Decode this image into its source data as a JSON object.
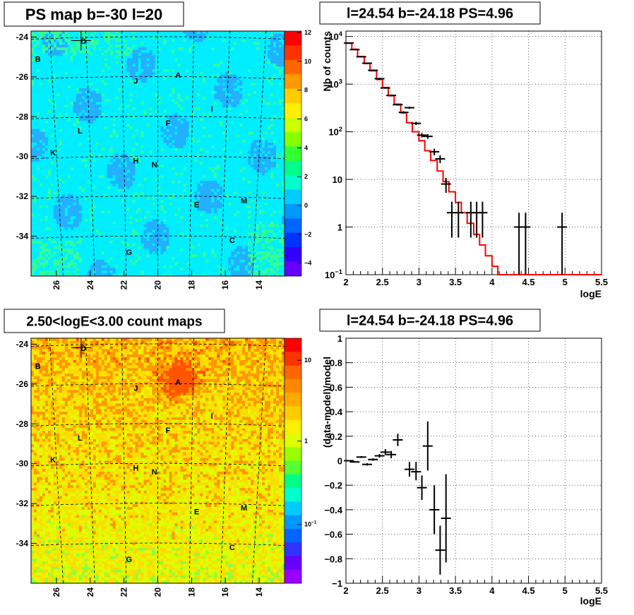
{
  "chart_data": [
    {
      "type": "heatmap",
      "title": "PS map b=-30 l=20",
      "x_ticks": [
        "26",
        "24",
        "22",
        "20",
        "18",
        "16",
        "14"
      ],
      "y_ticks": [
        "-24",
        "-26",
        "-28",
        "-30",
        "-32",
        "-34"
      ],
      "xlim": [
        27.5,
        12.5
      ],
      "ylim": [
        -36,
        -23.7
      ],
      "colorbar": {
        "ticks": [
          "12",
          "10",
          "8",
          "6",
          "4",
          "2",
          "0",
          "−2",
          "−4"
        ],
        "range": [
          -5,
          12
        ]
      },
      "sources": [
        {
          "name": "D",
          "l": 24.4,
          "b": -24.2
        },
        {
          "name": "B",
          "l": 27.1,
          "b": -25.1
        },
        {
          "name": "A",
          "l": 18.8,
          "b": -25.9
        },
        {
          "name": "J",
          "l": 21.3,
          "b": -26.2
        },
        {
          "name": "I",
          "l": 16.8,
          "b": -27.6
        },
        {
          "name": "F",
          "l": 19.4,
          "b": -28.3
        },
        {
          "name": "L",
          "l": 24.6,
          "b": -28.7
        },
        {
          "name": "K",
          "l": 26.2,
          "b": -29.8
        },
        {
          "name": "H",
          "l": 21.3,
          "b": -30.2
        },
        {
          "name": "N",
          "l": 20.2,
          "b": -30.4
        },
        {
          "name": "M",
          "l": 14.9,
          "b": -32.2
        },
        {
          "name": "E",
          "l": 17.7,
          "b": -32.4
        },
        {
          "name": "C",
          "l": 15.6,
          "b": -34.2
        },
        {
          "name": "G",
          "l": 21.7,
          "b": -34.8
        }
      ],
      "marker": {
        "l": 24.54,
        "b": -24.18
      }
    },
    {
      "type": "line",
      "title": "l=24.54 b=-24.18 PS=4.96",
      "xlabel": "logE",
      "ylabel": "Nb of counts",
      "xlim": [
        2,
        5.5
      ],
      "ylim": [
        0.1,
        13000
      ],
      "y_log": true,
      "x_ticks": [
        "2",
        "2.5",
        "3",
        "3.5",
        "4",
        "4.5",
        "5",
        "5.5"
      ],
      "y_ticks": [
        {
          "v": 10000,
          "base": "10",
          "exp": "4"
        },
        {
          "v": 1000,
          "base": "10",
          "exp": "3"
        },
        {
          "v": 100,
          "base": "10",
          "exp": "2"
        },
        {
          "v": 10,
          "base": "10",
          "exp": ""
        },
        {
          "v": 1,
          "base": "1",
          "exp": ""
        },
        {
          "v": 0.1,
          "base": "10",
          "exp": "−1"
        }
      ],
      "model": [
        {
          "x0": 2.0,
          "x1": 2.08,
          "y": 7200
        },
        {
          "x0": 2.08,
          "x1": 2.16,
          "y": 5400
        },
        {
          "x0": 2.16,
          "x1": 2.25,
          "y": 3800
        },
        {
          "x0": 2.25,
          "x1": 2.33,
          "y": 2700
        },
        {
          "x0": 2.33,
          "x1": 2.42,
          "y": 1900
        },
        {
          "x0": 2.42,
          "x1": 2.5,
          "y": 1250
        },
        {
          "x0": 2.5,
          "x1": 2.58,
          "y": 850
        },
        {
          "x0": 2.58,
          "x1": 2.66,
          "y": 570
        },
        {
          "x0": 2.66,
          "x1": 2.75,
          "y": 380
        },
        {
          "x0": 2.75,
          "x1": 2.83,
          "y": 250
        },
        {
          "x0": 2.83,
          "x1": 2.91,
          "y": 155
        },
        {
          "x0": 2.91,
          "x1": 3.0,
          "y": 100
        },
        {
          "x0": 3.0,
          "x1": 3.08,
          "y": 65
        },
        {
          "x0": 3.08,
          "x1": 3.16,
          "y": 40
        },
        {
          "x0": 3.16,
          "x1": 3.25,
          "y": 25
        },
        {
          "x0": 3.25,
          "x1": 3.33,
          "y": 15
        },
        {
          "x0": 3.33,
          "x1": 3.41,
          "y": 9
        },
        {
          "x0": 3.41,
          "x1": 3.5,
          "y": 5.5
        },
        {
          "x0": 3.5,
          "x1": 3.58,
          "y": 3.3
        },
        {
          "x0": 3.58,
          "x1": 3.66,
          "y": 2.0
        },
        {
          "x0": 3.66,
          "x1": 3.75,
          "y": 1.2
        },
        {
          "x0": 3.75,
          "x1": 3.83,
          "y": 0.7
        },
        {
          "x0": 3.83,
          "x1": 3.91,
          "y": 0.42
        },
        {
          "x0": 3.91,
          "x1": 4.0,
          "y": 0.25
        },
        {
          "x0": 4.0,
          "x1": 4.08,
          "y": 0.15
        },
        {
          "x0": 4.08,
          "x1": 5.5,
          "y": 0.1
        }
      ],
      "points": [
        {
          "x": 2.04,
          "y": 7300,
          "lo": 7100,
          "hi": 7500
        },
        {
          "x": 2.12,
          "y": 5300,
          "lo": 5150,
          "hi": 5450
        },
        {
          "x": 2.21,
          "y": 3750,
          "lo": 3630,
          "hi": 3870
        },
        {
          "x": 2.29,
          "y": 2750,
          "lo": 2650,
          "hi": 2850
        },
        {
          "x": 2.37,
          "y": 1950,
          "lo": 1870,
          "hi": 2030
        },
        {
          "x": 2.46,
          "y": 1300,
          "lo": 1240,
          "hi": 1360
        },
        {
          "x": 2.54,
          "y": 830,
          "lo": 800,
          "hi": 860
        },
        {
          "x": 2.62,
          "y": 580,
          "lo": 555,
          "hi": 605
        },
        {
          "x": 2.71,
          "y": 370,
          "lo": 352,
          "hi": 388
        },
        {
          "x": 2.79,
          "y": 255,
          "lo": 240,
          "hi": 270
        },
        {
          "x": 2.87,
          "y": 320,
          "lo": 302,
          "hi": 338
        },
        {
          "x": 2.96,
          "y": 150,
          "lo": 138,
          "hi": 162
        },
        {
          "x": 3.04,
          "y": 85,
          "lo": 76,
          "hi": 94
        },
        {
          "x": 3.12,
          "y": 80,
          "lo": 71,
          "hi": 89
        },
        {
          "x": 3.21,
          "y": 38,
          "lo": 32,
          "hi": 44
        },
        {
          "x": 3.29,
          "y": 27,
          "lo": 22,
          "hi": 32
        },
        {
          "x": 3.37,
          "y": 8,
          "lo": 5.2,
          "hi": 10.8
        },
        {
          "x": 3.45,
          "y": 2,
          "lo": 0.6,
          "hi": 3.4
        },
        {
          "x": 3.54,
          "y": 2,
          "lo": 0.6,
          "hi": 3.4
        },
        {
          "x": 3.71,
          "y": 2,
          "lo": 0.6,
          "hi": 3.4
        },
        {
          "x": 3.79,
          "y": 2,
          "lo": 0.6,
          "hi": 3.4
        },
        {
          "x": 3.87,
          "y": 2,
          "lo": 0.6,
          "hi": 3.4
        },
        {
          "x": 4.37,
          "y": 1,
          "lo": 0.1,
          "hi": 2.0
        },
        {
          "x": 4.46,
          "y": 1,
          "lo": 0.1,
          "hi": 2.0
        },
        {
          "x": 4.96,
          "y": 1,
          "lo": 0.1,
          "hi": 2.0
        }
      ]
    },
    {
      "type": "heatmap",
      "title": "2.50<logE<3.00 count maps",
      "x_ticks": [
        "26",
        "24",
        "22",
        "20",
        "18",
        "16",
        "14"
      ],
      "y_ticks": [
        "-24",
        "-26",
        "-28",
        "-30",
        "-32",
        "-34"
      ],
      "xlim": [
        27.5,
        12.5
      ],
      "ylim": [
        -36,
        -23.7
      ],
      "colorbar": {
        "ticks": [
          {
            "base": "10",
            "exp": ""
          },
          {
            "base": "1",
            "exp": ""
          },
          {
            "base": "10",
            "exp": "−1"
          }
        ],
        "log": true
      },
      "sources": [
        {
          "name": "D",
          "l": 24.4,
          "b": -24.2
        },
        {
          "name": "B",
          "l": 27.1,
          "b": -25.1
        },
        {
          "name": "A",
          "l": 18.8,
          "b": -25.9
        },
        {
          "name": "J",
          "l": 21.3,
          "b": -26.2
        },
        {
          "name": "I",
          "l": 16.8,
          "b": -27.6
        },
        {
          "name": "F",
          "l": 19.4,
          "b": -28.3
        },
        {
          "name": "L",
          "l": 24.6,
          "b": -28.7
        },
        {
          "name": "K",
          "l": 26.2,
          "b": -29.8
        },
        {
          "name": "H",
          "l": 21.3,
          "b": -30.2
        },
        {
          "name": "N",
          "l": 20.2,
          "b": -30.4
        },
        {
          "name": "M",
          "l": 14.9,
          "b": -32.2
        },
        {
          "name": "E",
          "l": 17.7,
          "b": -32.4
        },
        {
          "name": "C",
          "l": 15.6,
          "b": -34.2
        },
        {
          "name": "G",
          "l": 21.7,
          "b": -34.8
        }
      ],
      "marker": {
        "l": 24.54,
        "b": -24.18
      }
    },
    {
      "type": "scatter",
      "title": "l=24.54 b=-24.18 PS=4.96",
      "xlabel": "logE",
      "ylabel": "(data-model)/model",
      "xlim": [
        2,
        5.5
      ],
      "ylim": [
        -1,
        1
      ],
      "x_ticks": [
        "2",
        "2.5",
        "3",
        "3.5",
        "4",
        "4.5",
        "5",
        "5.5"
      ],
      "y_ticks": [
        "1",
        "0.8",
        "0.6",
        "0.4",
        "0.2",
        "0",
        "−0.2",
        "−0.4",
        "−0.6",
        "−0.8",
        "−1"
      ],
      "points": [
        {
          "x": 2.04,
          "y": 0.0,
          "lo": -0.005,
          "hi": 0.005
        },
        {
          "x": 2.12,
          "y": -0.01,
          "lo": -0.016,
          "hi": -0.004
        },
        {
          "x": 2.21,
          "y": 0.03,
          "lo": 0.022,
          "hi": 0.038
        },
        {
          "x": 2.29,
          "y": -0.03,
          "lo": -0.04,
          "hi": -0.02
        },
        {
          "x": 2.37,
          "y": 0.01,
          "lo": 0.0,
          "hi": 0.02
        },
        {
          "x": 2.46,
          "y": 0.04,
          "lo": 0.025,
          "hi": 0.055
        },
        {
          "x": 2.54,
          "y": 0.07,
          "lo": 0.045,
          "hi": 0.095
        },
        {
          "x": 2.62,
          "y": 0.05,
          "lo": 0.02,
          "hi": 0.08
        },
        {
          "x": 2.71,
          "y": 0.17,
          "lo": 0.12,
          "hi": 0.22
        },
        {
          "x": 2.87,
          "y": -0.07,
          "lo": -0.13,
          "hi": -0.01
        },
        {
          "x": 2.96,
          "y": -0.09,
          "lo": -0.16,
          "hi": -0.01
        },
        {
          "x": 3.04,
          "y": -0.22,
          "lo": -0.32,
          "hi": -0.12
        },
        {
          "x": 3.12,
          "y": 0.12,
          "lo": -0.08,
          "hi": 0.32
        },
        {
          "x": 3.21,
          "y": -0.4,
          "lo": -0.6,
          "hi": -0.2
        },
        {
          "x": 3.29,
          "y": -0.73,
          "lo": -0.93,
          "hi": -0.53
        },
        {
          "x": 3.37,
          "y": -0.47,
          "lo": -0.83,
          "hi": -0.11
        }
      ]
    }
  ]
}
